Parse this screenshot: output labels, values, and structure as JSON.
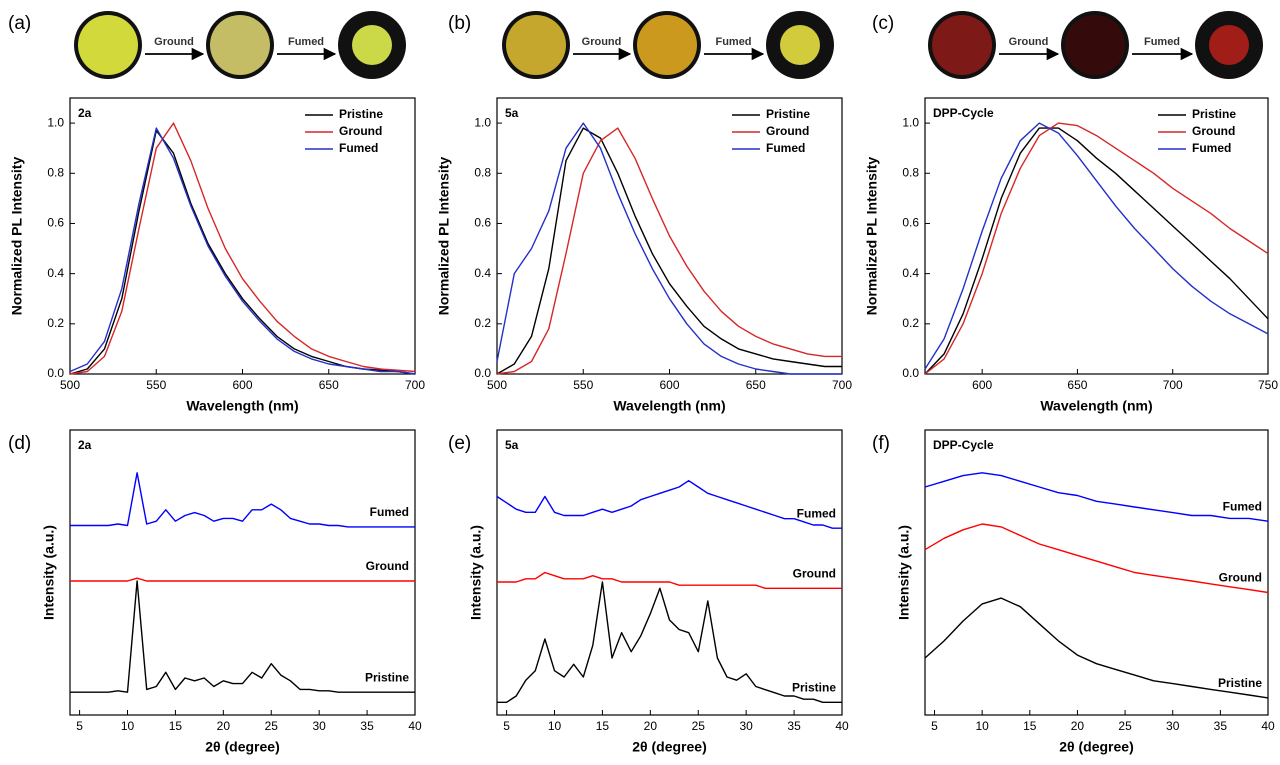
{
  "chart_data": [
    {
      "type": "line",
      "panel_label": "(a)",
      "photo_steps": [
        "Ground",
        "Fumed"
      ],
      "annotation": "2a",
      "xlabel": "Wavelength (nm)",
      "ylabel": "Normalized PL Intensity",
      "legend": "upper right",
      "x": [
        500,
        510,
        520,
        530,
        540,
        550,
        560,
        570,
        580,
        590,
        600,
        610,
        620,
        630,
        640,
        650,
        660,
        670,
        680,
        690,
        700
      ],
      "series": [
        {
          "name": "Pristine",
          "color": "#000000",
          "values": [
            0,
            0.02,
            0.1,
            0.3,
            0.65,
            0.97,
            0.88,
            0.68,
            0.52,
            0.4,
            0.3,
            0.22,
            0.15,
            0.1,
            0.07,
            0.05,
            0.03,
            0.02,
            0.015,
            0.01,
            0
          ]
        },
        {
          "name": "Ground",
          "color": "#d62728",
          "values": [
            0,
            0.01,
            0.07,
            0.25,
            0.58,
            0.9,
            1.0,
            0.85,
            0.66,
            0.5,
            0.38,
            0.29,
            0.21,
            0.15,
            0.1,
            0.07,
            0.05,
            0.03,
            0.02,
            0.015,
            0.01
          ]
        },
        {
          "name": "Fumed",
          "color": "#2430c8",
          "values": [
            0.01,
            0.04,
            0.13,
            0.34,
            0.68,
            0.98,
            0.86,
            0.67,
            0.51,
            0.39,
            0.29,
            0.21,
            0.14,
            0.09,
            0.06,
            0.04,
            0.03,
            0.02,
            0.01,
            0.01,
            0
          ]
        }
      ],
      "xlim": [
        500,
        700
      ],
      "xticks": [
        500,
        550,
        600,
        650,
        700
      ],
      "ylim": [
        0,
        1.1
      ],
      "yticks": [
        {
          "value": 0,
          "label": "0.0"
        },
        {
          "value": 0.2,
          "label": "0.2"
        },
        {
          "value": 0.4,
          "label": "0.4"
        },
        {
          "value": 0.6,
          "label": "0.6"
        },
        {
          "value": 0.8,
          "label": "0.8"
        },
        {
          "value": 1,
          "label": "1.0"
        }
      ]
    },
    {
      "type": "line",
      "panel_label": "(b)",
      "photo_steps": [
        "Ground",
        "Fumed"
      ],
      "annotation": "5a",
      "xlabel": "Wavelength (nm)",
      "ylabel": "Normalized PL Intensity",
      "legend": "upper right",
      "x": [
        500,
        510,
        520,
        530,
        540,
        550,
        560,
        570,
        580,
        590,
        600,
        610,
        620,
        630,
        640,
        650,
        660,
        670,
        680,
        690,
        700
      ],
      "series": [
        {
          "name": "Pristine",
          "color": "#000000",
          "values": [
            0,
            0.04,
            0.15,
            0.42,
            0.85,
            0.98,
            0.94,
            0.8,
            0.63,
            0.48,
            0.36,
            0.27,
            0.19,
            0.14,
            0.1,
            0.08,
            0.06,
            0.05,
            0.04,
            0.03,
            0.03
          ]
        },
        {
          "name": "Ground",
          "color": "#d62728",
          "values": [
            0,
            0.01,
            0.05,
            0.18,
            0.48,
            0.8,
            0.93,
            0.98,
            0.86,
            0.7,
            0.55,
            0.43,
            0.33,
            0.25,
            0.19,
            0.15,
            0.12,
            0.1,
            0.08,
            0.07,
            0.07
          ]
        },
        {
          "name": "Fumed",
          "color": "#2430c8",
          "values": [
            0.05,
            0.4,
            0.5,
            0.65,
            0.9,
            1.0,
            0.9,
            0.72,
            0.56,
            0.42,
            0.3,
            0.2,
            0.12,
            0.07,
            0.04,
            0.02,
            0.01,
            0,
            0,
            0,
            0
          ]
        }
      ],
      "xlim": [
        500,
        700
      ],
      "xticks": [
        500,
        550,
        600,
        650,
        700
      ],
      "ylim": [
        0,
        1.1
      ],
      "yticks": [
        {
          "value": 0,
          "label": "0.0"
        },
        {
          "value": 0.2,
          "label": "0.2"
        },
        {
          "value": 0.4,
          "label": "0.4"
        },
        {
          "value": 0.6,
          "label": "0.6"
        },
        {
          "value": 0.8,
          "label": "0.8"
        },
        {
          "value": 1,
          "label": "1.0"
        }
      ]
    },
    {
      "type": "line",
      "panel_label": "(c)",
      "photo_steps": [
        "Ground",
        "Fumed"
      ],
      "annotation": "DPP-Cycle",
      "xlabel": "Wavelength (nm)",
      "ylabel": "Normalized PL Intensity",
      "legend": "upper right",
      "x": [
        570,
        580,
        590,
        600,
        610,
        620,
        630,
        640,
        650,
        660,
        670,
        680,
        690,
        700,
        710,
        720,
        730,
        740,
        750
      ],
      "series": [
        {
          "name": "Pristine",
          "color": "#000000",
          "values": [
            0,
            0.08,
            0.24,
            0.46,
            0.7,
            0.88,
            0.98,
            0.98,
            0.93,
            0.86,
            0.8,
            0.73,
            0.66,
            0.59,
            0.52,
            0.45,
            0.38,
            0.3,
            0.22
          ]
        },
        {
          "name": "Ground",
          "color": "#d62728",
          "values": [
            0,
            0.06,
            0.2,
            0.4,
            0.64,
            0.82,
            0.95,
            1.0,
            0.99,
            0.95,
            0.9,
            0.85,
            0.8,
            0.74,
            0.69,
            0.64,
            0.58,
            0.53,
            0.48
          ]
        },
        {
          "name": "Fumed",
          "color": "#2430c8",
          "values": [
            0.02,
            0.14,
            0.34,
            0.57,
            0.78,
            0.93,
            1.0,
            0.96,
            0.87,
            0.77,
            0.67,
            0.58,
            0.5,
            0.42,
            0.35,
            0.29,
            0.24,
            0.2,
            0.16
          ]
        }
      ],
      "xlim": [
        570,
        750
      ],
      "xticks": [
        600,
        650,
        700,
        750
      ],
      "ylim": [
        0,
        1.1
      ],
      "yticks": [
        {
          "value": 0,
          "label": "0.0"
        },
        {
          "value": 0.2,
          "label": "0.2"
        },
        {
          "value": 0.4,
          "label": "0.4"
        },
        {
          "value": 0.6,
          "label": "0.6"
        },
        {
          "value": 0.8,
          "label": "0.8"
        },
        {
          "value": 1,
          "label": "1.0"
        }
      ]
    },
    {
      "type": "line",
      "panel_label": "(d)",
      "annotation": "2a",
      "legend": "inline",
      "xlabel": "2θ (degree)",
      "ylabel": "Intensity (a.u.)",
      "x": [
        4,
        5,
        6,
        7,
        8,
        9,
        10,
        11,
        12,
        13,
        14,
        15,
        16,
        17,
        18,
        19,
        20,
        21,
        22,
        23,
        24,
        25,
        26,
        27,
        28,
        29,
        30,
        31,
        32,
        33,
        34,
        35,
        36,
        37,
        38,
        39,
        40
      ],
      "series": [
        {
          "name": "Fumed",
          "color": "#0000ff",
          "values": [
            6.15,
            6.15,
            6.15,
            6.15,
            6.15,
            6.2,
            6.15,
            8.0,
            6.2,
            6.3,
            6.7,
            6.3,
            6.5,
            6.6,
            6.5,
            6.3,
            6.4,
            6.4,
            6.3,
            6.7,
            6.7,
            6.9,
            6.7,
            6.4,
            6.3,
            6.2,
            6.2,
            6.15,
            6.15,
            6.1,
            6.1,
            6.1,
            6.1,
            6.1,
            6.1,
            6.1,
            6.1
          ]
        },
        {
          "name": "Ground",
          "color": "#ff0000",
          "values": [
            4.2,
            4.2,
            4.2,
            4.2,
            4.2,
            4.2,
            4.2,
            4.3,
            4.2,
            4.2,
            4.2,
            4.2,
            4.2,
            4.2,
            4.2,
            4.2,
            4.2,
            4.2,
            4.2,
            4.2,
            4.2,
            4.2,
            4.2,
            4.2,
            4.2,
            4.2,
            4.2,
            4.2,
            4.2,
            4.2,
            4.2,
            4.2,
            4.2,
            4.2,
            4.2,
            4.2,
            4.2
          ]
        },
        {
          "name": "Pristine",
          "color": "#000000",
          "values": [
            0.3,
            0.3,
            0.3,
            0.3,
            0.3,
            0.35,
            0.3,
            4.2,
            0.4,
            0.5,
            1.0,
            0.4,
            0.8,
            0.7,
            0.8,
            0.5,
            0.7,
            0.6,
            0.6,
            1.0,
            0.8,
            1.3,
            0.9,
            0.7,
            0.4,
            0.4,
            0.35,
            0.35,
            0.3,
            0.3,
            0.3,
            0.3,
            0.3,
            0.3,
            0.3,
            0.3,
            0.3
          ]
        }
      ],
      "xlim": [
        4,
        40
      ],
      "xticks": [
        5,
        10,
        15,
        20,
        25,
        30,
        35,
        40
      ],
      "ylim": [
        -0.5,
        9.5
      ]
    },
    {
      "type": "line",
      "panel_label": "(e)",
      "annotation": "5a",
      "legend": "inline",
      "xlabel": "2θ (degree)",
      "ylabel": "Intensity (a.u.)",
      "x": [
        4,
        5,
        6,
        7,
        8,
        9,
        10,
        11,
        12,
        13,
        14,
        15,
        16,
        17,
        18,
        19,
        20,
        21,
        22,
        23,
        24,
        25,
        26,
        27,
        28,
        29,
        30,
        31,
        32,
        33,
        34,
        35,
        36,
        37,
        38,
        39,
        40
      ],
      "series": [
        {
          "name": "Fumed",
          "color": "#0000ff",
          "values": [
            6.9,
            6.7,
            6.5,
            6.4,
            6.4,
            6.9,
            6.4,
            6.3,
            6.3,
            6.3,
            6.4,
            6.5,
            6.4,
            6.5,
            6.6,
            6.8,
            6.9,
            7.0,
            7.1,
            7.2,
            7.4,
            7.2,
            7.0,
            6.9,
            6.8,
            6.7,
            6.6,
            6.5,
            6.4,
            6.3,
            6.2,
            6.2,
            6.1,
            6.0,
            6.0,
            5.9,
            5.9
          ]
        },
        {
          "name": "Ground",
          "color": "#ff0000",
          "values": [
            4.2,
            4.2,
            4.2,
            4.3,
            4.3,
            4.5,
            4.4,
            4.3,
            4.3,
            4.3,
            4.4,
            4.3,
            4.3,
            4.2,
            4.2,
            4.2,
            4.2,
            4.2,
            4.2,
            4.1,
            4.1,
            4.1,
            4.1,
            4.1,
            4.1,
            4.1,
            4.1,
            4.1,
            4.0,
            4.0,
            4.0,
            4.0,
            4.0,
            4.0,
            4.0,
            4.0,
            4.0
          ]
        },
        {
          "name": "Pristine",
          "color": "#000000",
          "values": [
            0.4,
            0.4,
            0.6,
            1.1,
            1.4,
            2.4,
            1.4,
            1.2,
            1.6,
            1.2,
            2.2,
            4.2,
            1.8,
            2.6,
            2.0,
            2.5,
            3.2,
            4.0,
            3.0,
            2.7,
            2.6,
            2.0,
            3.6,
            1.8,
            1.2,
            1.1,
            1.3,
            0.9,
            0.8,
            0.7,
            0.6,
            0.6,
            0.5,
            0.5,
            0.4,
            0.4,
            0.4
          ]
        }
      ],
      "xlim": [
        4,
        40
      ],
      "xticks": [
        5,
        10,
        15,
        20,
        25,
        30,
        35,
        40
      ],
      "ylim": [
        0,
        9
      ]
    },
    {
      "type": "line",
      "panel_label": "(f)",
      "annotation": "DPP-Cycle",
      "legend": "inline",
      "xlabel": "2θ (degree)",
      "ylabel": "Intensity (a.u.)",
      "x": [
        4,
        6,
        8,
        10,
        12,
        14,
        16,
        18,
        20,
        22,
        24,
        26,
        28,
        30,
        32,
        34,
        36,
        38,
        40
      ],
      "series": [
        {
          "name": "Fumed",
          "color": "#0000ff",
          "values": [
            8.0,
            8.2,
            8.4,
            8.5,
            8.4,
            8.2,
            8.0,
            7.8,
            7.7,
            7.5,
            7.4,
            7.3,
            7.2,
            7.1,
            7.0,
            7.0,
            6.9,
            6.9,
            6.8
          ]
        },
        {
          "name": "Ground",
          "color": "#ff0000",
          "values": [
            5.8,
            6.2,
            6.5,
            6.7,
            6.6,
            6.3,
            6.0,
            5.8,
            5.6,
            5.4,
            5.2,
            5.0,
            4.9,
            4.8,
            4.7,
            4.6,
            4.5,
            4.4,
            4.3
          ]
        },
        {
          "name": "Pristine",
          "color": "#000000",
          "values": [
            2.0,
            2.6,
            3.3,
            3.9,
            4.1,
            3.8,
            3.2,
            2.6,
            2.1,
            1.8,
            1.6,
            1.4,
            1.2,
            1.1,
            1.0,
            0.9,
            0.8,
            0.7,
            0.6
          ]
        }
      ],
      "xlim": [
        4,
        40
      ],
      "xticks": [
        5,
        10,
        15,
        20,
        25,
        30,
        35,
        40
      ],
      "ylim": [
        0,
        10
      ]
    }
  ]
}
